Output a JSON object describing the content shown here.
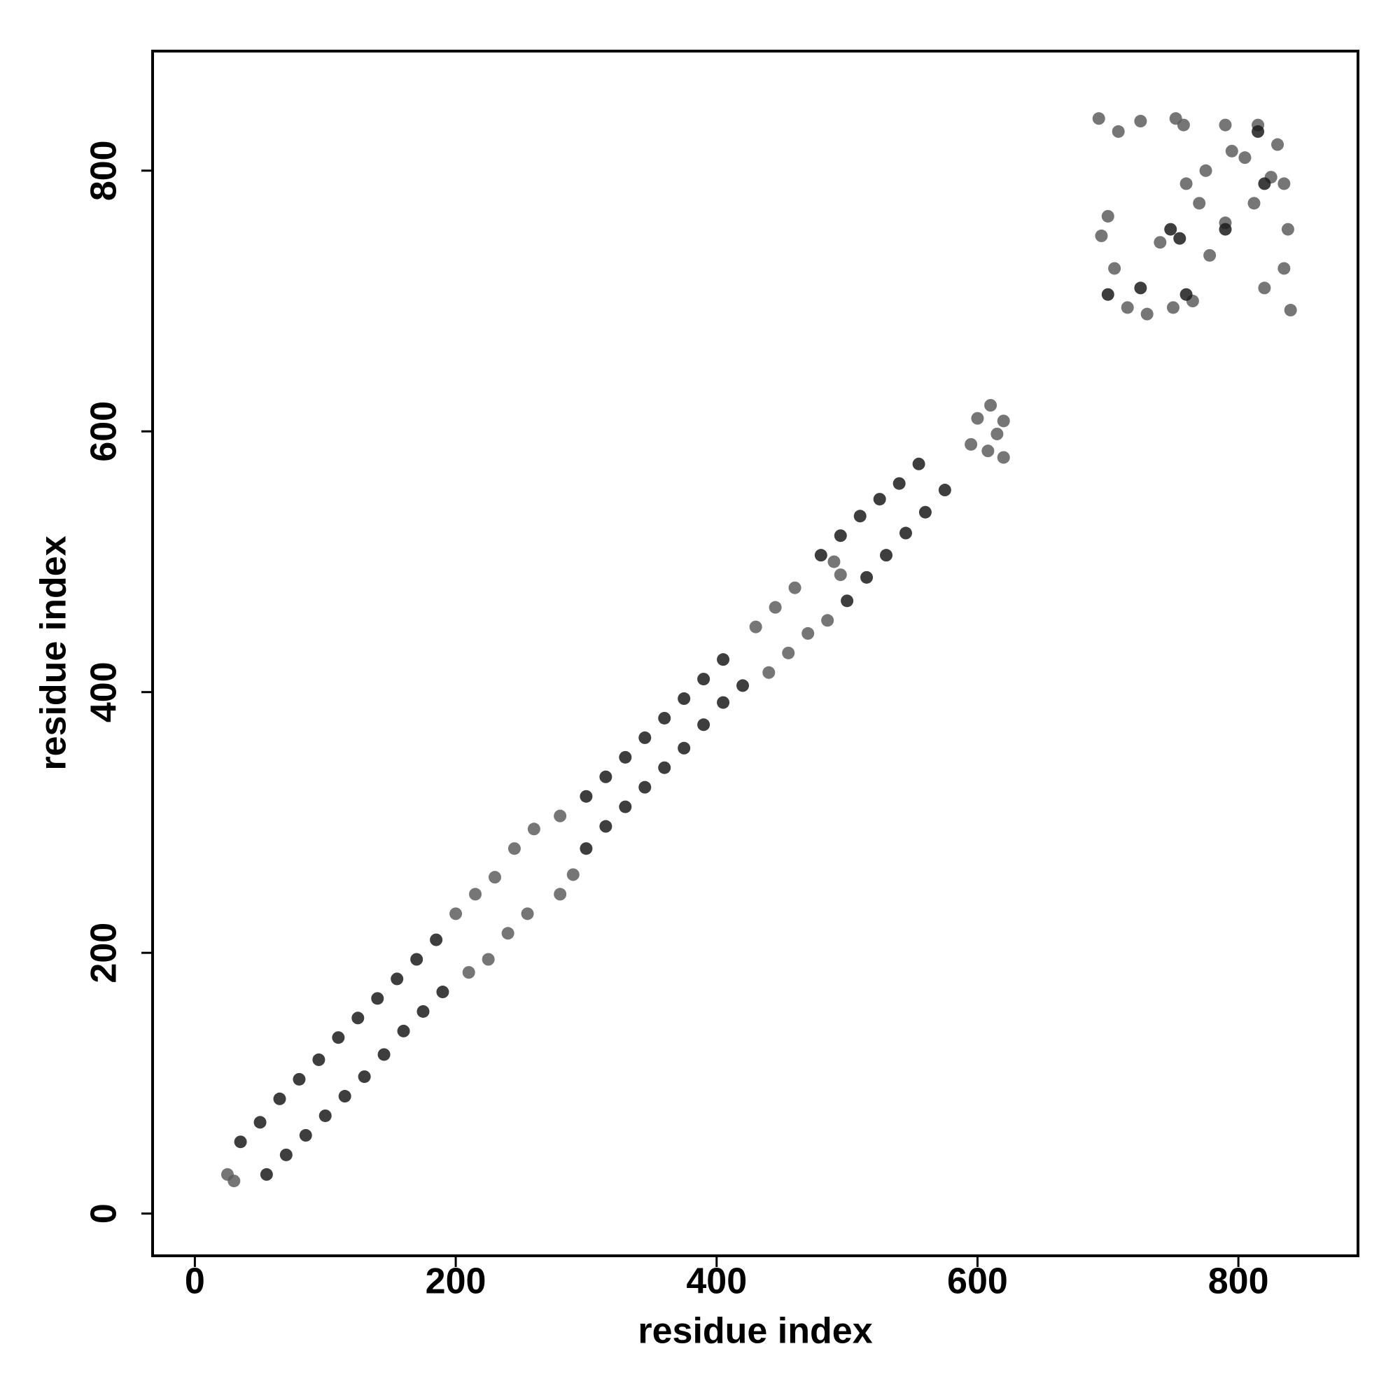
{
  "chart_data": {
    "type": "scatter",
    "x_label": "residue index",
    "y_label": "residue index",
    "xlim": [
      -32.4,
      891.7
    ],
    "ylim": [
      -32.4,
      891.7
    ],
    "xticks": [
      0,
      200,
      400,
      600,
      800
    ],
    "yticks": [
      0,
      200,
      400,
      600,
      800
    ],
    "grid": false,
    "series": [
      {
        "color": "#5e5e5e",
        "x": [
          25,
          30,
          200,
          215,
          230,
          245,
          260,
          280,
          210,
          225,
          240,
          255,
          280,
          290,
          430,
          445,
          460,
          440,
          455,
          470,
          485,
          490,
          495,
          600,
          610,
          620,
          615,
          608,
          620,
          595,
          693,
          708,
          725,
          752,
          758,
          790,
          815,
          830,
          700,
          695,
          705,
          715,
          730,
          740,
          760,
          775,
          795,
          805,
          825,
          835,
          790,
          770,
          750,
          765,
          820,
          835,
          838,
          840,
          812,
          778
        ],
        "y": [
          30,
          25,
          230,
          245,
          258,
          280,
          295,
          305,
          185,
          195,
          215,
          230,
          245,
          260,
          450,
          465,
          480,
          415,
          430,
          445,
          455,
          500,
          490,
          610,
          620,
          608,
          598,
          585,
          580,
          590,
          840,
          830,
          838,
          840,
          835,
          835,
          835,
          820,
          765,
          750,
          725,
          695,
          690,
          745,
          790,
          800,
          815,
          810,
          795,
          790,
          760,
          775,
          695,
          700,
          710,
          725,
          755,
          693,
          775,
          735
        ]
      },
      {
        "color": "#1c1c1c",
        "x": [
          35,
          50,
          65,
          80,
          95,
          110,
          125,
          140,
          155,
          170,
          185,
          300,
          315,
          330,
          345,
          360,
          375,
          390,
          405,
          480,
          495,
          510,
          525,
          540,
          555,
          55,
          70,
          85,
          100,
          115,
          130,
          145,
          160,
          175,
          190,
          300,
          315,
          330,
          345,
          360,
          375,
          390,
          405,
          420,
          500,
          515,
          530,
          545,
          560,
          575,
          748,
          755,
          815,
          820,
          790,
          760,
          700,
          725
        ],
        "y": [
          55,
          70,
          88,
          103,
          118,
          135,
          150,
          165,
          180,
          195,
          210,
          320,
          335,
          350,
          365,
          380,
          395,
          410,
          425,
          505,
          520,
          535,
          548,
          560,
          575,
          30,
          45,
          60,
          75,
          90,
          105,
          122,
          140,
          155,
          170,
          280,
          297,
          312,
          327,
          342,
          357,
          375,
          392,
          405,
          470,
          488,
          505,
          522,
          538,
          555,
          755,
          748,
          830,
          790,
          755,
          705,
          705,
          710
        ]
      }
    ]
  }
}
